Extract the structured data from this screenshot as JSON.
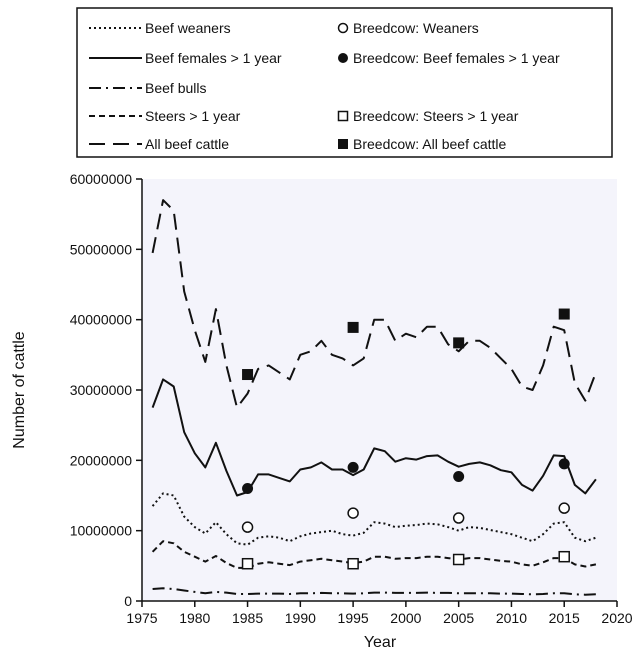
{
  "chart_data": {
    "type": "line",
    "title": "",
    "xlabel": "Year",
    "ylabel": "Number of cattle",
    "xlim": [
      1975,
      2020
    ],
    "ylim": [
      0,
      60000000
    ],
    "x_ticks": [
      1975,
      1980,
      1985,
      1990,
      1995,
      2000,
      2005,
      2010,
      2015,
      2020
    ],
    "y_ticks": [
      0,
      10000000,
      20000000,
      30000000,
      40000000,
      50000000,
      60000000
    ],
    "y_tick_labels": [
      "0",
      "10000000",
      "20000000",
      "30000000",
      "40000000",
      "50000000",
      "60000000"
    ],
    "grid": false,
    "legend_position": "top",
    "x": [
      1976,
      1977,
      1978,
      1979,
      1980,
      1981,
      1982,
      1983,
      1984,
      1985,
      1986,
      1987,
      1988,
      1989,
      1990,
      1991,
      1992,
      1993,
      1994,
      1995,
      1996,
      1997,
      1998,
      1999,
      2000,
      2001,
      2002,
      2003,
      2004,
      2005,
      2006,
      2007,
      2008,
      2009,
      2010,
      2011,
      2012,
      2013,
      2014,
      2015,
      2016,
      2017,
      2018
    ],
    "series": [
      {
        "name": "Beef weaners",
        "style": "dotted",
        "values": [
          13500000,
          15300000,
          15000000,
          12000000,
          10500000,
          9600000,
          11200000,
          9500000,
          8200000,
          8000000,
          9000000,
          9200000,
          9000000,
          8500000,
          9200000,
          9600000,
          9800000,
          10000000,
          9500000,
          9300000,
          9700000,
          11200000,
          11000000,
          10500000,
          10700000,
          10800000,
          11000000,
          10900000,
          10500000,
          10000000,
          10500000,
          10400000,
          10100000,
          9800000,
          9500000,
          9000000,
          8500000,
          9500000,
          11000000,
          11200000,
          9000000,
          8500000,
          9000000
        ]
      },
      {
        "name": "Beef females > 1 year",
        "style": "solid",
        "values": [
          27500000,
          31500000,
          30500000,
          24000000,
          21000000,
          19000000,
          22500000,
          18500000,
          15000000,
          15500000,
          18000000,
          18000000,
          17500000,
          17000000,
          18700000,
          19000000,
          19700000,
          18700000,
          18700000,
          17900000,
          18700000,
          21700000,
          21300000,
          19800000,
          20300000,
          20100000,
          20600000,
          20700000,
          19800000,
          19100000,
          19500000,
          19700000,
          19300000,
          18600000,
          18300000,
          16500000,
          15700000,
          17800000,
          20700000,
          20600000,
          16500000,
          15300000,
          17300000
        ]
      },
      {
        "name": "Beef bulls",
        "style": "dashdot",
        "values": [
          1700000,
          1800000,
          1700000,
          1500000,
          1300000,
          1100000,
          1300000,
          1200000,
          1000000,
          1000000,
          1050000,
          1050000,
          1050000,
          1000000,
          1100000,
          1100000,
          1150000,
          1100000,
          1100000,
          1050000,
          1100000,
          1200000,
          1200000,
          1150000,
          1150000,
          1150000,
          1200000,
          1150000,
          1150000,
          1100000,
          1100000,
          1100000,
          1100000,
          1050000,
          1050000,
          1000000,
          950000,
          1000000,
          1100000,
          1100000,
          950000,
          900000,
          950000
        ]
      },
      {
        "name": "Steers > 1 year",
        "style": "dashed",
        "values": [
          7000000,
          8500000,
          8200000,
          7000000,
          6300000,
          5600000,
          6400000,
          5400000,
          4700000,
          4700000,
          5300000,
          5500000,
          5300000,
          5100000,
          5600000,
          5800000,
          6000000,
          5800000,
          5600000,
          5400000,
          5600000,
          6300000,
          6300000,
          6000000,
          6100000,
          6100000,
          6300000,
          6300000,
          6100000,
          5900000,
          6100000,
          6100000,
          5900000,
          5700000,
          5600000,
          5200000,
          5000000,
          5500000,
          6100000,
          6100000,
          5200000,
          4900000,
          5200000
        ]
      },
      {
        "name": "All beef cattle",
        "style": "longdash",
        "values": [
          49500000,
          57000000,
          55500000,
          44000000,
          38500000,
          34000000,
          41500000,
          33500000,
          27500000,
          29500000,
          33000000,
          33500000,
          32500000,
          31500000,
          35000000,
          35500000,
          37000000,
          35000000,
          34500000,
          33500000,
          34500000,
          40000000,
          40000000,
          37000000,
          38000000,
          37500000,
          39000000,
          39000000,
          36500000,
          35500000,
          37000000,
          37000000,
          36000000,
          34500000,
          33000000,
          30500000,
          30000000,
          33500000,
          39000000,
          38500000,
          31000000,
          28500000,
          32500000
        ]
      }
    ],
    "breedcow_series": [
      {
        "name": "Breedcow: Weaners",
        "marker": "open-circle",
        "x": [
          1985,
          1995,
          2005,
          2015
        ],
        "values": [
          10500000,
          12500000,
          11800000,
          13200000
        ]
      },
      {
        "name": "Breedcow: Beef females > 1 year",
        "marker": "filled-circle",
        "x": [
          1985,
          1995,
          2005,
          2015
        ],
        "values": [
          16000000,
          19000000,
          17700000,
          19500000
        ]
      },
      {
        "name": "Breedcow: Steers > 1 year",
        "marker": "open-square",
        "x": [
          1985,
          1995,
          2005,
          2015
        ],
        "values": [
          5300000,
          5300000,
          5900000,
          6300000
        ]
      },
      {
        "name": "Breedcow: All beef cattle",
        "marker": "filled-square",
        "x": [
          1985,
          1995,
          2005,
          2015
        ],
        "values": [
          32200000,
          38900000,
          36700000,
          40800000
        ]
      }
    ],
    "colors": {
      "plot_background": "#f4f4fb",
      "ink": "#111111"
    }
  }
}
